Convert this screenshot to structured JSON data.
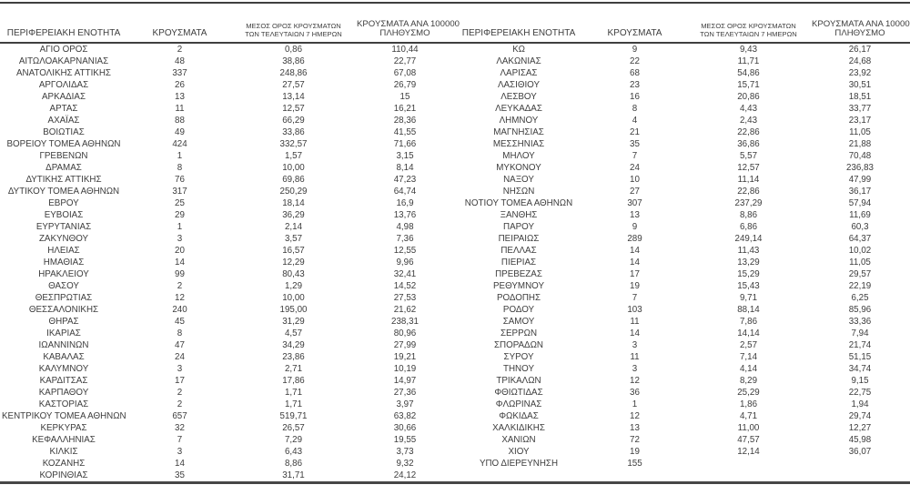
{
  "colors": {
    "text": "#3d3d3d",
    "line": "#3f3f3f",
    "background": "#ffffff"
  },
  "table": {
    "headers": {
      "region": "ΠΕΡΙΦΕΡΕΙΑΚΗ ΕΝΟΤΗΤΑ",
      "cases": "ΚΡΟΥΣΜΑΤΑ",
      "avg7_line1": "ΜΕΣΟΣ ΟΡΟΣ ΚΡΟΥΣΜΑΤΩΝ",
      "avg7_line2": "ΤΩΝ ΤΕΛΕΥΤΑΙΩΝ 7 ΗΜΕΡΩΝ",
      "per100k_line1": "ΚΡΟΥΣΜΑΤΑ ΑΝΑ 100000",
      "per100k_line2": "ΠΛΗΘΥΣΜΟ"
    },
    "left_rows": [
      {
        "region": "ΑΓΙΟ ΟΡΟΣ",
        "cases": "2",
        "avg7": "0,86",
        "per100k": "110,44"
      },
      {
        "region": "ΑΙΤΩΛΟΑΚΑΡΝΑΝΙΑΣ",
        "cases": "48",
        "avg7": "38,86",
        "per100k": "22,77"
      },
      {
        "region": "ΑΝΑΤΟΛΙΚΗΣ ΑΤΤΙΚΗΣ",
        "cases": "337",
        "avg7": "248,86",
        "per100k": "67,08"
      },
      {
        "region": "ΑΡΓΟΛΙΔΑΣ",
        "cases": "26",
        "avg7": "27,57",
        "per100k": "26,79"
      },
      {
        "region": "ΑΡΚΑΔΙΑΣ",
        "cases": "13",
        "avg7": "13,14",
        "per100k": "15"
      },
      {
        "region": "ΑΡΤΑΣ",
        "cases": "11",
        "avg7": "12,57",
        "per100k": "16,21"
      },
      {
        "region": "ΑΧΑΪΑΣ",
        "cases": "88",
        "avg7": "66,29",
        "per100k": "28,36"
      },
      {
        "region": "ΒΟΙΩΤΙΑΣ",
        "cases": "49",
        "avg7": "33,86",
        "per100k": "41,55"
      },
      {
        "region": "ΒΟΡΕΙΟΥ ΤΟΜΕΑ ΑΘΗΝΩΝ",
        "cases": "424",
        "avg7": "332,57",
        "per100k": "71,66"
      },
      {
        "region": "ΓΡΕΒΕΝΩΝ",
        "cases": "1",
        "avg7": "1,57",
        "per100k": "3,15"
      },
      {
        "region": "ΔΡΑΜΑΣ",
        "cases": "8",
        "avg7": "10,00",
        "per100k": "8,14"
      },
      {
        "region": "ΔΥΤΙΚΗΣ ΑΤΤΙΚΗΣ",
        "cases": "76",
        "avg7": "69,86",
        "per100k": "47,23"
      },
      {
        "region": "ΔΥΤΙΚΟΥ ΤΟΜΕΑ ΑΘΗΝΩΝ",
        "cases": "317",
        "avg7": "250,29",
        "per100k": "64,74"
      },
      {
        "region": "ΕΒΡΟΥ",
        "cases": "25",
        "avg7": "18,14",
        "per100k": "16,9"
      },
      {
        "region": "ΕΥΒΟΙΑΣ",
        "cases": "29",
        "avg7": "36,29",
        "per100k": "13,76"
      },
      {
        "region": "ΕΥΡΥΤΑΝΙΑΣ",
        "cases": "1",
        "avg7": "2,14",
        "per100k": "4,98"
      },
      {
        "region": "ΖΑΚΥΝΘΟΥ",
        "cases": "3",
        "avg7": "3,57",
        "per100k": "7,36"
      },
      {
        "region": "ΗΛΕΙΑΣ",
        "cases": "20",
        "avg7": "16,57",
        "per100k": "12,55"
      },
      {
        "region": "ΗΜΑΘΙΑΣ",
        "cases": "14",
        "avg7": "12,29",
        "per100k": "9,96"
      },
      {
        "region": "ΗΡΑΚΛΕΙΟΥ",
        "cases": "99",
        "avg7": "80,43",
        "per100k": "32,41"
      },
      {
        "region": "ΘΑΣΟΥ",
        "cases": "2",
        "avg7": "1,29",
        "per100k": "14,52"
      },
      {
        "region": "ΘΕΣΠΡΩΤΙΑΣ",
        "cases": "12",
        "avg7": "10,00",
        "per100k": "27,53"
      },
      {
        "region": "ΘΕΣΣΑΛΟΝΙΚΗΣ",
        "cases": "240",
        "avg7": "195,00",
        "per100k": "21,62"
      },
      {
        "region": "ΘΗΡΑΣ",
        "cases": "45",
        "avg7": "31,29",
        "per100k": "238,31"
      },
      {
        "region": "ΙΚΑΡΙΑΣ",
        "cases": "8",
        "avg7": "4,57",
        "per100k": "80,96"
      },
      {
        "region": "ΙΩΑΝΝΙΝΩΝ",
        "cases": "47",
        "avg7": "34,29",
        "per100k": "27,99"
      },
      {
        "region": "ΚΑΒΑΛΑΣ",
        "cases": "24",
        "avg7": "23,86",
        "per100k": "19,21"
      },
      {
        "region": "ΚΑΛΥΜΝΟΥ",
        "cases": "3",
        "avg7": "2,71",
        "per100k": "10,19"
      },
      {
        "region": "ΚΑΡΔΙΤΣΑΣ",
        "cases": "17",
        "avg7": "17,86",
        "per100k": "14,97"
      },
      {
        "region": "ΚΑΡΠΑΘΟΥ",
        "cases": "2",
        "avg7": "1,71",
        "per100k": "27,36"
      },
      {
        "region": "ΚΑΣΤΟΡΙΑΣ",
        "cases": "2",
        "avg7": "1,71",
        "per100k": "3,97"
      },
      {
        "region": "ΚΕΝΤΡΙΚΟΥ ΤΟΜΕΑ ΑΘΗΝΩΝ",
        "cases": "657",
        "avg7": "519,71",
        "per100k": "63,82"
      },
      {
        "region": "ΚΕΡΚΥΡΑΣ",
        "cases": "32",
        "avg7": "26,57",
        "per100k": "30,66"
      },
      {
        "region": "ΚΕΦΑΛΛΗΝΙΑΣ",
        "cases": "7",
        "avg7": "7,29",
        "per100k": "19,55"
      },
      {
        "region": "ΚΙΛΚΙΣ",
        "cases": "3",
        "avg7": "6,43",
        "per100k": "3,73"
      },
      {
        "region": "ΚΟΖΑΝΗΣ",
        "cases": "14",
        "avg7": "8,86",
        "per100k": "9,32"
      },
      {
        "region": "ΚΟΡΙΝΘΙΑΣ",
        "cases": "35",
        "avg7": "31,71",
        "per100k": "24,12"
      }
    ],
    "right_rows": [
      {
        "region": "ΚΩ",
        "cases": "9",
        "avg7": "9,43",
        "per100k": "26,17"
      },
      {
        "region": "ΛΑΚΩΝΙΑΣ",
        "cases": "22",
        "avg7": "11,71",
        "per100k": "24,68"
      },
      {
        "region": "ΛΑΡΙΣΑΣ",
        "cases": "68",
        "avg7": "54,86",
        "per100k": "23,92"
      },
      {
        "region": "ΛΑΣΙΘΙΟΥ",
        "cases": "23",
        "avg7": "15,71",
        "per100k": "30,51"
      },
      {
        "region": "ΛΕΣΒΟΥ",
        "cases": "16",
        "avg7": "20,86",
        "per100k": "18,51"
      },
      {
        "region": "ΛΕΥΚΑΔΑΣ",
        "cases": "8",
        "avg7": "4,43",
        "per100k": "33,77"
      },
      {
        "region": "ΛΗΜΝΟΥ",
        "cases": "4",
        "avg7": "2,43",
        "per100k": "23,17"
      },
      {
        "region": "ΜΑΓΝΗΣΙΑΣ",
        "cases": "21",
        "avg7": "22,86",
        "per100k": "11,05"
      },
      {
        "region": "ΜΕΣΣΗΝΙΑΣ",
        "cases": "35",
        "avg7": "36,86",
        "per100k": "21,88"
      },
      {
        "region": "ΜΗΛΟΥ",
        "cases": "7",
        "avg7": "5,57",
        "per100k": "70,48"
      },
      {
        "region": "ΜΥΚΟΝΟΥ",
        "cases": "24",
        "avg7": "12,57",
        "per100k": "236,83"
      },
      {
        "region": "ΝΑΞΟΥ",
        "cases": "10",
        "avg7": "11,14",
        "per100k": "47,99"
      },
      {
        "region": "ΝΗΣΩΝ",
        "cases": "27",
        "avg7": "22,86",
        "per100k": "36,17"
      },
      {
        "region": "ΝΟΤΙΟΥ ΤΟΜΕΑ ΑΘΗΝΩΝ",
        "cases": "307",
        "avg7": "237,29",
        "per100k": "57,94"
      },
      {
        "region": "ΞΑΝΘΗΣ",
        "cases": "13",
        "avg7": "8,86",
        "per100k": "11,69"
      },
      {
        "region": "ΠΑΡΟΥ",
        "cases": "9",
        "avg7": "6,86",
        "per100k": "60,3"
      },
      {
        "region": "ΠΕΙΡΑΙΩΣ",
        "cases": "289",
        "avg7": "249,14",
        "per100k": "64,37"
      },
      {
        "region": "ΠΕΛΛΑΣ",
        "cases": "14",
        "avg7": "11,43",
        "per100k": "10,02"
      },
      {
        "region": "ΠΙΕΡΙΑΣ",
        "cases": "14",
        "avg7": "13,29",
        "per100k": "11,05"
      },
      {
        "region": "ΠΡΕΒΕΖΑΣ",
        "cases": "17",
        "avg7": "15,29",
        "per100k": "29,57"
      },
      {
        "region": "ΡΕΘΥΜΝΟΥ",
        "cases": "19",
        "avg7": "15,43",
        "per100k": "22,19"
      },
      {
        "region": "ΡΟΔΟΠΗΣ",
        "cases": "7",
        "avg7": "9,71",
        "per100k": "6,25"
      },
      {
        "region": "ΡΟΔΟΥ",
        "cases": "103",
        "avg7": "88,14",
        "per100k": "85,96"
      },
      {
        "region": "ΣΑΜΟΥ",
        "cases": "11",
        "avg7": "7,86",
        "per100k": "33,36"
      },
      {
        "region": "ΣΕΡΡΩΝ",
        "cases": "14",
        "avg7": "14,14",
        "per100k": "7,94"
      },
      {
        "region": "ΣΠΟΡΑΔΩΝ",
        "cases": "3",
        "avg7": "2,57",
        "per100k": "21,74"
      },
      {
        "region": "ΣΥΡΟΥ",
        "cases": "11",
        "avg7": "7,14",
        "per100k": "51,15"
      },
      {
        "region": "ΤΗΝΟΥ",
        "cases": "3",
        "avg7": "4,14",
        "per100k": "34,74"
      },
      {
        "region": "ΤΡΙΚΑΛΩΝ",
        "cases": "12",
        "avg7": "8,29",
        "per100k": "9,15"
      },
      {
        "region": "ΦΘΙΩΤΙΔΑΣ",
        "cases": "36",
        "avg7": "25,29",
        "per100k": "22,75"
      },
      {
        "region": "ΦΛΩΡΙΝΑΣ",
        "cases": "1",
        "avg7": "1,86",
        "per100k": "1,94"
      },
      {
        "region": "ΦΩΚΙΔΑΣ",
        "cases": "12",
        "avg7": "4,71",
        "per100k": "29,74"
      },
      {
        "region": "ΧΑΛΚΙΔΙΚΗΣ",
        "cases": "13",
        "avg7": "11,00",
        "per100k": "12,27"
      },
      {
        "region": "ΧΑΝΙΩΝ",
        "cases": "72",
        "avg7": "47,57",
        "per100k": "45,98"
      },
      {
        "region": "ΧΙΟΥ",
        "cases": "19",
        "avg7": "12,14",
        "per100k": "36,07"
      },
      {
        "region": "ΥΠΟ ΔΙΕΡΕΥΝΗΣΗ",
        "cases": "155",
        "avg7": "",
        "per100k": ""
      }
    ]
  }
}
